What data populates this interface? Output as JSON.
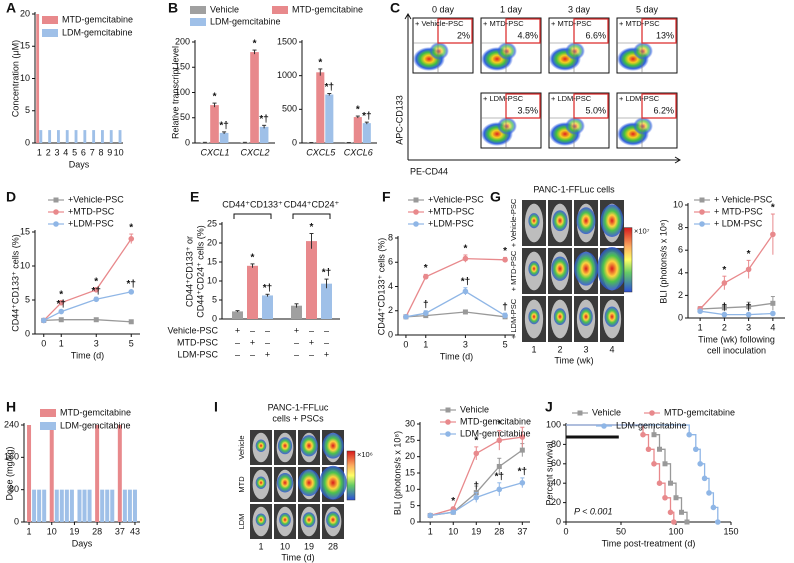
{
  "chart_data": [
    {
      "type": "bar",
      "label": "A",
      "ylabel": "Concentration (μM)",
      "xlabel": "Days",
      "categories": [
        "1",
        "2",
        "3",
        "4",
        "5",
        "6",
        "7",
        "8",
        "9",
        "10"
      ],
      "series": [
        {
          "name": "MTD-gemcitabine",
          "color": "#e8898c",
          "values": [
            20,
            null,
            null,
            null,
            null,
            null,
            null,
            null,
            null,
            null
          ]
        },
        {
          "name": "LDM-gemcitabine",
          "color": "#9fc0e8",
          "values": [
            2,
            2,
            2,
            2,
            2,
            2,
            2,
            2,
            2,
            2
          ]
        }
      ],
      "ylim": [
        0,
        20
      ],
      "yticks": [
        0,
        5,
        10,
        15,
        20
      ]
    },
    {
      "type": "bar",
      "label": "B",
      "ylabel": "Relative transcript level",
      "categories": [
        "CXCL1",
        "CXCL2"
      ],
      "series": [
        {
          "name": "Vehicle",
          "color": "#a0a0a0",
          "values": [
            1,
            1
          ],
          "errors": [
            0.3,
            0.3
          ]
        },
        {
          "name": "MTD-gemcitabine",
          "color": "#e8898c",
          "values": [
            75,
            180
          ],
          "errors": [
            4,
            4
          ],
          "significance": [
            "*",
            "*"
          ]
        },
        {
          "name": "LDM-gemcitabine",
          "color": "#9fc0e8",
          "values": [
            20,
            32
          ],
          "errors": [
            2,
            3
          ],
          "significance": [
            "*†",
            "*†"
          ]
        }
      ],
      "ylim": [
        0,
        200
      ],
      "yticks": [
        0,
        50,
        100,
        150,
        200
      ]
    },
    {
      "type": "bar",
      "categories": [
        "CXCL5",
        "CXCL6"
      ],
      "series": [
        {
          "color": "#a0a0a0",
          "values": [
            5,
            5
          ],
          "errors": [
            2,
            2
          ]
        },
        {
          "color": "#e8898c",
          "values": [
            1050,
            385
          ],
          "errors": [
            50,
            15
          ],
          "significance": [
            "*",
            "*"
          ]
        },
        {
          "color": "#9fc0e8",
          "values": [
            720,
            295
          ],
          "errors": [
            15,
            15
          ],
          "significance": [
            "*†",
            "*†"
          ]
        }
      ],
      "ylim": [
        0,
        1500
      ],
      "yticks": [
        0,
        500,
        1000,
        1500
      ]
    },
    {
      "type": "line",
      "label": "D",
      "ylabel": "CD44⁺CD133⁺ cells (%)",
      "xlabel": "Time  (d)",
      "x": [
        0,
        1,
        3,
        5
      ],
      "xlim": [
        -0.5,
        5.5
      ],
      "xticks": [
        0,
        1,
        3,
        5
      ],
      "ylim": [
        0,
        15
      ],
      "yticks": [
        0,
        5,
        10,
        15
      ],
      "series": [
        {
          "name": "+Vehicle-PSC",
          "color": "#999999",
          "marker": "square",
          "values": [
            2,
            2.1,
            2.1,
            1.8
          ],
          "errors": [
            0.1,
            0.2,
            0.2,
            0.2
          ]
        },
        {
          "name": "+MTD-PSC",
          "color": "#e8898c",
          "marker": "circle",
          "values": [
            2,
            4.6,
            6.5,
            14
          ],
          "errors": [
            0.1,
            0.3,
            0.3,
            0.7
          ],
          "significance": [
            null,
            "*",
            "*",
            "*"
          ]
        },
        {
          "name": "+LDM-PSC",
          "color": "#8fb6e6",
          "marker": "circle",
          "values": [
            2,
            3.3,
            5.1,
            6.2
          ],
          "errors": [
            0.1,
            0.2,
            0.3,
            0.2
          ],
          "significance": [
            null,
            "*†",
            "*†",
            "*†"
          ]
        }
      ]
    },
    {
      "type": "bar",
      "label": "E",
      "ylabel": [
        "CD44⁺CD133⁺ or",
        "CD44⁺CD24⁺ cells (%)"
      ],
      "groups": [
        "CD44⁺CD133⁺",
        "CD44⁺CD24⁺"
      ],
      "values": [
        2,
        14,
        6.2,
        3.5,
        20.5,
        9.3
      ],
      "errors": [
        0.2,
        0.5,
        0.3,
        0.5,
        2,
        1.2
      ],
      "colors": [
        "#a0a0a0",
        "#e8898c",
        "#9fc0e8",
        "#a0a0a0",
        "#e8898c",
        "#9fc0e8"
      ],
      "significance": [
        null,
        "*",
        "*†",
        null,
        "*",
        "*†"
      ],
      "ylim": [
        0,
        25
      ],
      "yticks": [
        0,
        5,
        10,
        15,
        20,
        25
      ],
      "treatments": {
        "rows": [
          "Vehicle-PSC",
          "MTD-PSC",
          "LDM-PSC"
        ],
        "cells": [
          [
            "+",
            "–",
            "–",
            "+",
            "–",
            "–"
          ],
          [
            "–",
            "+",
            "–",
            "–",
            "+",
            "–"
          ],
          [
            "–",
            "–",
            "+",
            "–",
            "–",
            "+"
          ]
        ]
      }
    },
    {
      "type": "line",
      "label": "F",
      "ylabel": "CD44⁺CD133⁺ cells (%)",
      "xlabel": "Time  (d)",
      "x": [
        0,
        1,
        3,
        5
      ],
      "xlim": [
        -0.4,
        5.5
      ],
      "xticks": [
        0,
        1,
        3,
        5
      ],
      "ylim": [
        0,
        8
      ],
      "yticks": [
        0,
        2,
        4,
        6,
        8
      ],
      "series": [
        {
          "name": "+Vehicle-PSC",
          "color": "#999999",
          "marker": "square",
          "values": [
            1.5,
            1.6,
            1.9,
            1.5
          ],
          "errors": [
            0.1,
            0.1,
            0.1,
            0.1
          ]
        },
        {
          "name": "+MTD-PSC",
          "color": "#e8898c",
          "marker": "circle",
          "values": [
            1.5,
            4.8,
            6.3,
            6.2
          ],
          "errors": [
            0.1,
            0.2,
            0.3,
            0.2
          ],
          "significance": [
            null,
            "*",
            "*",
            "*"
          ]
        },
        {
          "name": "+LDM-PSC",
          "color": "#8fb6e6",
          "marker": "circle",
          "values": [
            1.5,
            1.8,
            3.6,
            1.6
          ],
          "errors": [
            0.1,
            0.2,
            0.3,
            0.2
          ],
          "significance": [
            null,
            "†",
            "*†",
            "†"
          ]
        }
      ]
    },
    {
      "type": "line",
      "ylabel": "BLI (photons/s x 10⁸)",
      "xlabel": [
        "Time (wk) following",
        "cell inoculation"
      ],
      "x": [
        1,
        2,
        3,
        4
      ],
      "xlim": [
        0.5,
        4.5
      ],
      "xticks": [
        1,
        2,
        3,
        4
      ],
      "ylim": [
        0,
        10
      ],
      "yticks": [
        0,
        2,
        4,
        6,
        8,
        10
      ],
      "series": [
        {
          "name": "+ Vehicle-PSC",
          "color": "#999999",
          "marker": "square",
          "values": [
            0.8,
            0.9,
            1.0,
            1.3
          ],
          "errors": [
            0.2,
            0.3,
            0.4,
            0.6
          ]
        },
        {
          "name": "+ MTD-PSC",
          "color": "#e8898c",
          "marker": "circle",
          "values": [
            0.8,
            3.1,
            4.3,
            7.4
          ],
          "errors": [
            0.2,
            0.6,
            0.8,
            1.8
          ],
          "significance": [
            null,
            "*",
            "*",
            "*"
          ]
        },
        {
          "name": "+ LDM-PSC",
          "color": "#8fb6e6",
          "marker": "circle",
          "values": [
            0.6,
            0.3,
            0.3,
            0.4
          ],
          "errors": [
            0.1,
            0.1,
            0.1,
            0.1
          ],
          "significance": [
            null,
            "†",
            "†",
            null
          ]
        }
      ]
    },
    {
      "type": "bar",
      "label": "H",
      "ylabel": "Dose (mg/kg)",
      "xlabel": "Days",
      "xlim": [
        -1,
        45
      ],
      "xticks": [
        1,
        10,
        19,
        28,
        37,
        43
      ],
      "ylim": [
        0,
        240
      ],
      "yticks": [
        0,
        80,
        160,
        240
      ],
      "series": [
        {
          "name": "MTD-gemcitabine",
          "color": "#e8898c",
          "x": [
            1,
            10,
            28,
            37
          ],
          "values": [
            240,
            240,
            240,
            240
          ]
        },
        {
          "name": "LDM-gemcitabine",
          "color": "#9fc0e8",
          "x": [
            3,
            5,
            7,
            12,
            14,
            16,
            18,
            21,
            23,
            25,
            30,
            32,
            34,
            39,
            41,
            43
          ],
          "values": [
            80,
            80,
            80,
            80,
            80,
            80,
            80,
            80,
            80,
            80,
            80,
            80,
            80,
            80,
            80,
            80
          ]
        }
      ]
    },
    {
      "type": "line",
      "ylabel": "BLI (photons/s x 10⁸)",
      "x": [
        1,
        10,
        19,
        28,
        37
      ],
      "xlim": [
        -3,
        40
      ],
      "xticks": [
        1,
        10,
        19,
        28,
        37
      ],
      "ylim": [
        0,
        30
      ],
      "yticks": [
        0,
        5,
        10,
        15,
        20,
        25,
        30
      ],
      "series": [
        {
          "name": "Vehicle",
          "color": "#999999",
          "marker": "square",
          "values": [
            2,
            3,
            9,
            17,
            22
          ],
          "errors": [
            0.2,
            0.5,
            2,
            2.5,
            2
          ]
        },
        {
          "name": "MTD-gemcitabine",
          "color": "#e8898c",
          "marker": "circle",
          "values": [
            2,
            4,
            21,
            25,
            26
          ],
          "errors": [
            0.2,
            0.5,
            2,
            3,
            3
          ],
          "significance": [
            null,
            "*",
            "*",
            "*",
            null
          ]
        },
        {
          "name": "LDM-gemcitabine",
          "color": "#8fb6e6",
          "marker": "circle",
          "values": [
            2,
            3,
            7.5,
            10,
            12
          ],
          "errors": [
            0.2,
            0.4,
            1.5,
            2,
            1.5
          ],
          "significance": [
            null,
            null,
            "†",
            "*†",
            "*†"
          ]
        }
      ]
    },
    {
      "type": "survival",
      "label": "J",
      "ylabel": "Percent survival",
      "xlabel": "Time post-treatment (d)",
      "annotation": "P < 0.001",
      "treatment_period": [
        0,
        48
      ],
      "xlim": [
        0,
        150
      ],
      "xticks": [
        0,
        50,
        100,
        150
      ],
      "ylim": [
        0,
        100
      ],
      "yticks": [
        0,
        20,
        40,
        60,
        80,
        100
      ],
      "series": [
        {
          "name": "Vehicle",
          "color": "#999999",
          "marker": "square",
          "x": [
            0,
            80,
            80,
            85,
            85,
            90,
            90,
            95,
            95,
            100,
            100,
            105,
            105,
            110,
            110
          ],
          "values": [
            100,
            100,
            90,
            90,
            75,
            75,
            60,
            60,
            40,
            40,
            25,
            25,
            10,
            10,
            0
          ]
        },
        {
          "name": "MTD-gemcitabine",
          "color": "#e8898c",
          "marker": "circle",
          "x": [
            0,
            70,
            70,
            75,
            75,
            80,
            80,
            85,
            85,
            90,
            90,
            95,
            95,
            98,
            98
          ],
          "values": [
            100,
            100,
            90,
            90,
            75,
            75,
            60,
            60,
            40,
            40,
            25,
            25,
            10,
            10,
            0
          ]
        },
        {
          "name": "LDM-gemcitabine",
          "color": "#8fb6e6",
          "marker": "circle",
          "x": [
            0,
            112,
            112,
            118,
            118,
            122,
            122,
            126,
            126,
            130,
            130,
            134,
            134,
            138,
            138
          ],
          "values": [
            100,
            100,
            90,
            90,
            75,
            75,
            60,
            60,
            45,
            45,
            30,
            30,
            15,
            15,
            0
          ]
        }
      ]
    }
  ],
  "flow": {
    "label": "C",
    "y_axis": "APC-CD133",
    "x_axis": "PE-CD44",
    "columns": [
      "0 day",
      "1 day",
      "3 day",
      "5 day"
    ],
    "rows": [
      [
        {
          "condition": "+ Vehicle-PSC",
          "percent": "2%"
        },
        {
          "condition": "+ MTD-PSC",
          "percent": "4.8%"
        },
        {
          "condition": "+ MTD-PSC",
          "percent": "6.6%"
        },
        {
          "condition": "+ MTD-PSC",
          "percent": "13%"
        }
      ],
      [
        null,
        {
          "condition": "+ LDM-PSC",
          "percent": "3.5%"
        },
        {
          "condition": "+ LDM-PSC",
          "percent": "5.0%"
        },
        {
          "condition": "+ LDM-PSC",
          "percent": "6.2%"
        }
      ]
    ]
  },
  "imaging_G": {
    "label": "G",
    "title": "PANC-1-FFLuc cells",
    "rows": [
      "+ Vehicle-PSC",
      "+ MTD-PSC",
      "+ LDM-PSC"
    ],
    "columns": [
      "1",
      "2",
      "3",
      "4"
    ],
    "xlabel": "Time (wk)",
    "colorbar_unit": "×10⁷"
  },
  "imaging_I": {
    "label": "I",
    "title": [
      "PANC-1-FFLuc",
      "cells + PSCs"
    ],
    "rows": [
      "Vehicle",
      "MTD",
      "LDM"
    ],
    "columns": [
      "1",
      "10",
      "19",
      "28"
    ],
    "xlabel": "Time (d)",
    "colorbar_unit": "×10⁶"
  }
}
